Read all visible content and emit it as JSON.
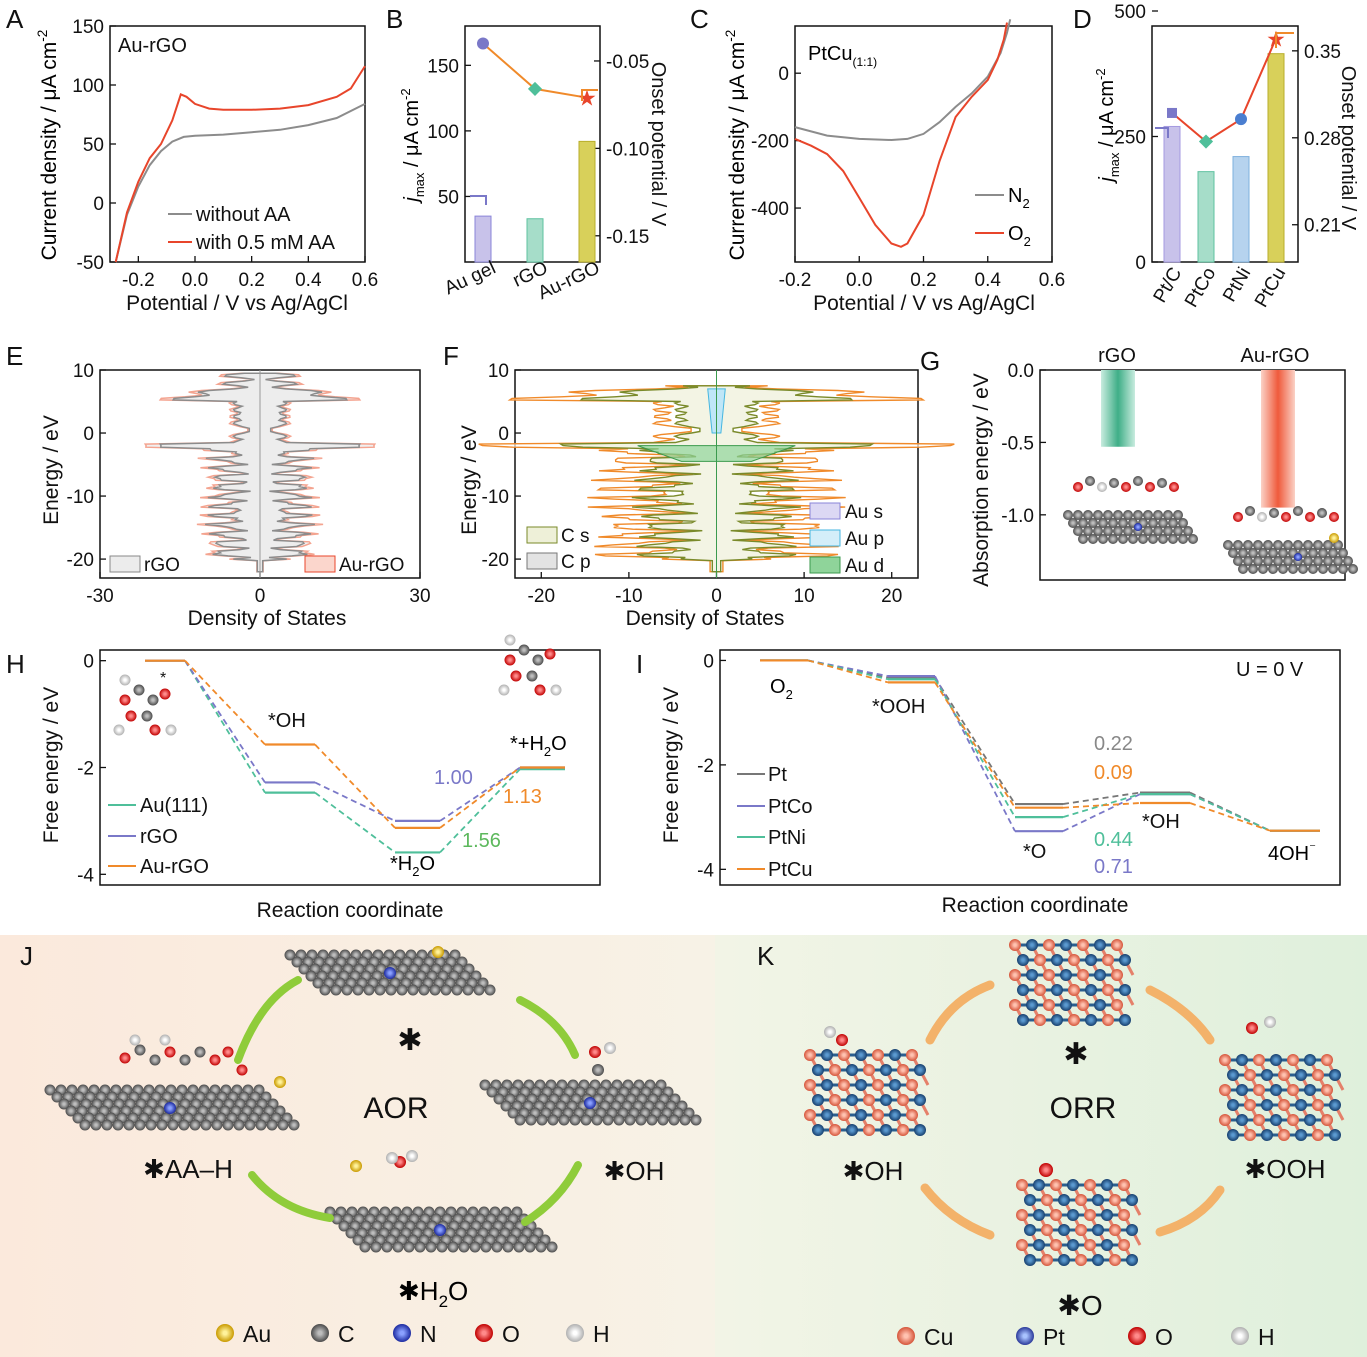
{
  "colors": {
    "gray": "#8c8c8c",
    "red": "#e8452b",
    "orange": "#f08a2a",
    "purple": "#7a78c8",
    "teal": "#4fbf9a",
    "green": "#5cb85c",
    "blue_bar": "#b6d3ee",
    "purple_bar": "#c8c2ea",
    "teal_bar": "#a6ddc9",
    "yellow_bar": "#d8d05a",
    "olive": "#6b7a2a",
    "cu": "#e5806a",
    "pt": "#1f5b9a"
  },
  "panels": {
    "A": {
      "letter": "A",
      "inset": "Au-rGO",
      "legend": [
        "without AA",
        "with 0.5 mM AA"
      ]
    },
    "B": {
      "letter": "B"
    },
    "C": {
      "letter": "C",
      "inset": "PtCu",
      "inset_sub": "(1:1)",
      "legend": [
        "N",
        "O"
      ],
      "legend_sub": "2"
    },
    "D": {
      "letter": "D"
    },
    "E": {
      "letter": "E",
      "legend": [
        "rGO",
        "Au-rGO"
      ]
    },
    "F": {
      "letter": "F",
      "legend_left": [
        "C s",
        "C p"
      ],
      "legend_right": [
        "Au s",
        "Au p",
        "Au d"
      ]
    },
    "G": {
      "letter": "G"
    },
    "H": {
      "letter": "H",
      "labels": [
        "*OH",
        "*+H",
        "O",
        "*H",
        "O",
        "1.00",
        "1.13",
        "1.56",
        "*"
      ],
      "legend": [
        "Au(111)",
        "rGO",
        "Au-rGO"
      ]
    },
    "I": {
      "letter": "I",
      "labels": [
        "O",
        "*OOH",
        "*O",
        "*OH",
        "4OH",
        "⁻",
        "U = 0 V",
        "0.22",
        "0.09",
        "0.44",
        "0.71"
      ],
      "legend": [
        "Pt",
        "PtCo",
        "PtNi",
        "PtCu"
      ]
    },
    "J": {
      "letter": "J",
      "center": "AOR",
      "states": [
        "✱",
        "✱OH",
        "✱H",
        "O",
        "✱AA–H"
      ],
      "legend": [
        "Au",
        "C",
        "N",
        "O",
        "H"
      ]
    },
    "K": {
      "letter": "K",
      "center": "ORR",
      "states": [
        "✱",
        "✱OOH",
        "✱O",
        "✱OH"
      ],
      "legend": [
        "Cu",
        "Pt",
        "O",
        "H"
      ]
    }
  },
  "chart_data": [
    {
      "panel": "A",
      "type": "line",
      "title": "",
      "xlabel": "Potential / V vs Ag/AgCl",
      "ylabel": "Current density / μA cm",
      "ylabel_sup": "-2",
      "xlim": [
        -0.3,
        0.6
      ],
      "ylim": [
        -50,
        150
      ],
      "xticks": [
        "-0.2",
        "0.0",
        "0.2",
        "0.4",
        "0.6"
      ],
      "yticks": [
        "-50",
        "0",
        "50",
        "100",
        "150"
      ],
      "series": [
        {
          "name": "without AA",
          "x": [
            -0.28,
            -0.24,
            -0.2,
            -0.16,
            -0.12,
            -0.08,
            -0.04,
            0.0,
            0.1,
            0.2,
            0.3,
            0.4,
            0.5,
            0.6
          ],
          "y": [
            -50,
            -10,
            14,
            32,
            44,
            52,
            56,
            57,
            58,
            60,
            62,
            66,
            72,
            84
          ]
        },
        {
          "name": "with 0.5 mM AA",
          "x": [
            -0.28,
            -0.24,
            -0.2,
            -0.16,
            -0.12,
            -0.08,
            -0.05,
            -0.03,
            0.0,
            0.05,
            0.1,
            0.2,
            0.3,
            0.4,
            0.5,
            0.55,
            0.6
          ],
          "y": [
            -50,
            -8,
            18,
            38,
            50,
            70,
            92,
            90,
            84,
            80,
            79,
            79,
            80,
            83,
            90,
            97,
            116
          ]
        }
      ]
    },
    {
      "panel": "B",
      "type": "bar",
      "categories": [
        "Au gel",
        "rGO",
        "Au-rGO"
      ],
      "ylabel": "j",
      "ylabel_sub": "max",
      "ylabel_rest": " / μA cm",
      "ylabel_sup": "-2",
      "ylim": [
        0,
        180
      ],
      "yticks": [
        "50",
        "100",
        "150"
      ],
      "values": [
        35,
        33,
        92
      ],
      "y2label": "Onset potential / V",
      "y2lim": [
        -0.165,
        -0.03
      ],
      "y2ticks": [
        "-0.05",
        "-0.10",
        "-0.15"
      ],
      "line_values": [
        -0.04,
        -0.066,
        -0.071
      ]
    },
    {
      "panel": "C",
      "type": "line",
      "title": "",
      "xlabel": "Potential / V vs Ag/AgCl",
      "ylabel": "Current density / μA cm",
      "ylabel_sup": "-2",
      "xlim": [
        -0.2,
        0.6
      ],
      "ylim": [
        -560,
        140
      ],
      "xticks": [
        "-0.2",
        "0.0",
        "0.2",
        "0.4",
        "0.6"
      ],
      "yticks": [
        "0",
        "-200",
        "-400"
      ],
      "series": [
        {
          "name": "N2",
          "x": [
            -0.2,
            -0.1,
            0.0,
            0.1,
            0.15,
            0.2,
            0.25,
            0.3,
            0.35,
            0.4,
            0.44,
            0.46,
            0.47
          ],
          "y": [
            -160,
            -185,
            -195,
            -198,
            -195,
            -180,
            -145,
            -100,
            -60,
            -10,
            60,
            120,
            160
          ]
        },
        {
          "name": "O2",
          "x": [
            -0.2,
            -0.15,
            -0.1,
            -0.05,
            0.0,
            0.05,
            0.1,
            0.13,
            0.15,
            0.2,
            0.25,
            0.3,
            0.35,
            0.4,
            0.43,
            0.45,
            0.46
          ],
          "y": [
            -195,
            -215,
            -240,
            -290,
            -370,
            -450,
            -505,
            -515,
            -505,
            -420,
            -260,
            -130,
            -70,
            -20,
            40,
            100,
            150
          ]
        }
      ]
    },
    {
      "panel": "D",
      "type": "bar",
      "categories": [
        "Pt/C",
        "PtCo",
        "PtNi",
        "PtCu"
      ],
      "ylabel": "j",
      "ylabel_sub": "max",
      "ylabel_rest": " / μA cm",
      "ylabel_sup": "-2",
      "ylim": [
        0,
        500
      ],
      "yticks": [
        "0",
        "250",
        "500"
      ],
      "values": [
        270,
        180,
        210,
        415
      ],
      "y2label": "Onset potential / V",
      "y2lim": [
        0.18,
        0.37
      ],
      "y2ticks": [
        "0.21",
        "0.28",
        "0.35"
      ],
      "line_values": [
        0.3,
        0.277,
        0.295,
        0.36
      ]
    },
    {
      "panel": "E",
      "type": "area",
      "xlabel": "Density of States",
      "ylabel": "Energy / eV",
      "xlim": [
        -30,
        30
      ],
      "ylim": [
        -23,
        10
      ],
      "xticks": [
        "-30",
        "0",
        "30"
      ],
      "yticks": [
        "10",
        "0",
        "-10",
        "-20"
      ],
      "series": [
        "rGO",
        "Au-rGO"
      ]
    },
    {
      "panel": "F",
      "type": "area",
      "xlabel": "Density of States",
      "ylabel": "Energy / eV",
      "xlim": [
        -23,
        23
      ],
      "ylim": [
        -23,
        10
      ],
      "xticks": [
        "-20",
        "-10",
        "0",
        "10",
        "20"
      ],
      "yticks": [
        "10",
        "0",
        "-10",
        "-20"
      ],
      "series": [
        "C s",
        "C p",
        "Au s",
        "Au p",
        "Au d"
      ]
    },
    {
      "panel": "G",
      "type": "bar",
      "categories": [
        "rGO",
        "Au-rGO"
      ],
      "ylabel": "Absorption energy / eV",
      "ylim": [
        -1.45,
        0.0
      ],
      "yticks": [
        "0.0",
        "-0.5",
        "-1.0"
      ],
      "values": [
        -0.53,
        -0.95
      ]
    },
    {
      "panel": "H",
      "type": "line",
      "xlabel": "Reaction coordinate",
      "ylabel": "Free energy / eV",
      "ylim": [
        -4.2,
        0.2
      ],
      "yticks": [
        "0",
        "-2",
        "-4"
      ],
      "series": [
        {
          "name": "Au(111)",
          "values": [
            0,
            -2.47,
            -3.59,
            -2.03
          ]
        },
        {
          "name": "rGO",
          "values": [
            0,
            -2.28,
            -3.0,
            -2.0
          ]
        },
        {
          "name": "Au-rGO",
          "values": [
            0,
            -1.57,
            -3.13,
            -2.0
          ]
        }
      ]
    },
    {
      "panel": "I",
      "type": "line",
      "xlabel": "Reaction coordinate",
      "ylabel": "Free energy / eV",
      "ylim": [
        -4.3,
        0.2
      ],
      "yticks": [
        "0",
        "-2",
        "-4"
      ],
      "series": [
        {
          "name": "Pt",
          "values": [
            0,
            -0.33,
            -2.75,
            -2.53,
            -3.26
          ]
        },
        {
          "name": "PtCo",
          "values": [
            0,
            -0.3,
            -3.27,
            -2.56,
            -3.26
          ]
        },
        {
          "name": "PtNi",
          "values": [
            0,
            -0.36,
            -3.0,
            -2.56,
            -3.26
          ]
        },
        {
          "name": "PtCu",
          "values": [
            0,
            -0.42,
            -2.82,
            -2.73,
            -3.26
          ]
        }
      ]
    }
  ]
}
